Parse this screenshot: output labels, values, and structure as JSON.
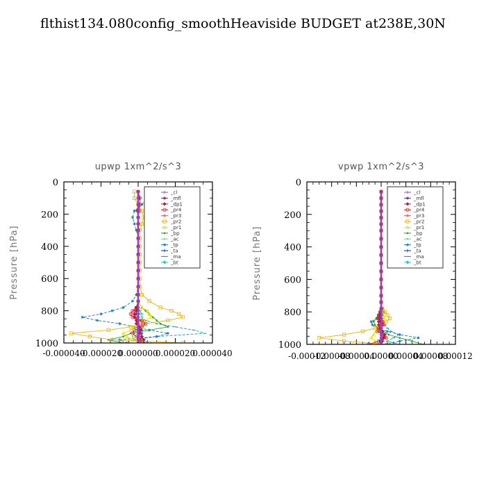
{
  "figure": {
    "title": "flthist134.080config_smoothHeaviside  BUDGET at238E,30N"
  },
  "legend_entries": [
    {
      "label": "_cl",
      "color": "#9a40c8",
      "marker": "plus"
    },
    {
      "label": "_mfl",
      "color": "#7a1f6e",
      "marker": "star"
    },
    {
      "label": "_dp1",
      "color": "#b01a4a",
      "marker": "diamond"
    },
    {
      "label": "_pr4",
      "color": "#e01818",
      "marker": "circle"
    },
    {
      "label": "_pr3",
      "color": "#ff5a5a",
      "marker": "star"
    },
    {
      "label": "_pr2",
      "color": "#f0b400",
      "marker": "square"
    },
    {
      "label": "_pr1",
      "color": "#e8e000",
      "marker": "triangle"
    },
    {
      "label": "_bp",
      "color": "#20a020",
      "marker": "dot"
    },
    {
      "label": "_ac",
      "color": "#70e070",
      "marker": "dot"
    },
    {
      "label": "_tp",
      "color": "#1878b8",
      "marker": "star"
    },
    {
      "label": "_ta",
      "color": "#0a2a90",
      "marker": "plus"
    },
    {
      "label": "_ma",
      "color": "#1890c0",
      "marker": "dash"
    },
    {
      "label": "_bt",
      "color": "#00d8d8",
      "marker": "diamond"
    }
  ],
  "chart_data": [
    {
      "type": "line",
      "title": "upwp   1xm^2/s^3",
      "xlabel": "",
      "ylabel": "Pressure [hPa]",
      "xlim": [
        -4e-05,
        4e-05
      ],
      "ylim": [
        1000,
        0
      ],
      "xticks": [
        -4e-05,
        -2e-05,
        0,
        2e-05,
        4e-05
      ],
      "xtick_labels": [
        "-0.000040",
        "-0.000020",
        "0.000000",
        "0.000020",
        "0.000040"
      ],
      "yticks": [
        0,
        200,
        400,
        600,
        800,
        1000
      ],
      "ytick_labels": [
        "0",
        "200",
        "400",
        "600",
        "800",
        "1000"
      ],
      "legend_location": "upper-right",
      "y": [
        60,
        100,
        140,
        180,
        220,
        260,
        300,
        350,
        400,
        450,
        500,
        550,
        600,
        650,
        700,
        740,
        780,
        800,
        820,
        840,
        860,
        880,
        900,
        920,
        940,
        960,
        980,
        1000
      ],
      "series": [
        {
          "name": "_cl",
          "values": [
            0,
            0,
            0,
            0,
            0,
            0,
            0,
            0,
            0,
            0,
            0,
            0,
            0,
            0,
            0,
            0,
            0,
            0,
            0,
            0,
            0,
            0,
            0,
            0,
            0,
            0,
            0,
            0
          ]
        },
        {
          "name": "_mfl",
          "values": [
            0,
            0,
            0,
            0,
            0,
            0,
            0,
            0,
            0,
            0,
            0,
            0,
            0,
            0,
            0,
            0,
            0,
            0,
            0,
            0,
            0,
            0,
            0,
            0,
            0,
            0,
            0,
            0
          ]
        },
        {
          "name": "_dp1",
          "values": [
            0,
            5e-07,
            0,
            -5e-07,
            0,
            0,
            0,
            0,
            0,
            0,
            0,
            0,
            0,
            0,
            0,
            0,
            -1e-06,
            -1e-06,
            -2e-06,
            -2e-06,
            -1e-06,
            -1e-06,
            5e-07,
            1e-06,
            1e-06,
            2e-06,
            3e-06,
            3e-06
          ]
        },
        {
          "name": "_pr4",
          "values": [
            0,
            1e-06,
            1e-06,
            5e-07,
            0,
            0,
            0,
            0,
            0,
            0,
            0,
            0,
            0,
            0,
            0,
            0,
            -1e-06,
            -3e-06,
            -4e-06,
            -3e-06,
            2e-06,
            4e-06,
            2e-06,
            -2e-06,
            -3e-06,
            -1e-06,
            2e-06,
            1e-06
          ]
        },
        {
          "name": "_pr3",
          "values": [
            0,
            0,
            0,
            0,
            0,
            0,
            0,
            0,
            0,
            0,
            0,
            0,
            0,
            0,
            0,
            0,
            -1e-06,
            -2e-06,
            -2e-06,
            -1e-06,
            1e-06,
            2e-06,
            1e-06,
            0,
            0,
            1e-06,
            1e-06,
            0
          ]
        },
        {
          "name": "_pr2",
          "values": [
            -2e-06,
            -2e-06,
            0,
            2e-06,
            3e-06,
            2e-06,
            1e-06,
            1e-06,
            1e-06,
            1e-06,
            1e-06,
            1e-06,
            1e-06,
            1e-06,
            2e-06,
            6e-06,
            1.2e-05,
            1.8e-05,
            2.2e-05,
            2.4e-05,
            1.6e-05,
            4e-06,
            -4e-06,
            -1.6e-05,
            -3.6e-05,
            -2.6e-05,
            -1.4e-05,
            2.4e-05
          ]
        },
        {
          "name": "_pr1",
          "values": [
            0,
            0,
            0,
            0,
            0,
            0,
            0,
            0,
            0,
            0,
            0,
            0,
            0,
            0,
            0,
            0,
            2e-06,
            5e-06,
            6e-06,
            7e-06,
            3e-06,
            0,
            -2e-06,
            -4e-06,
            -8e-06,
            -6e-06,
            -3e-06,
            4e-06
          ]
        },
        {
          "name": "_bp",
          "values": [
            0,
            0,
            0,
            0,
            0,
            0,
            0,
            0,
            0,
            0,
            0,
            0,
            0,
            0,
            0,
            0,
            2e-06,
            4e-06,
            6e-06,
            8e-06,
            1e-05,
            1.2e-05,
            1.6e-05,
            6e-06,
            -4e-06,
            -8e-06,
            -1.6e-05,
            -8e-06
          ]
        },
        {
          "name": "_ac",
          "values": [
            0,
            0,
            0,
            0,
            0,
            0,
            0,
            0,
            0,
            0,
            0,
            0,
            0,
            0,
            0,
            0,
            0,
            1e-06,
            1e-06,
            2e-06,
            2e-06,
            3e-06,
            2e-06,
            0,
            -2e-06,
            -3e-06,
            -2e-06,
            0
          ]
        },
        {
          "name": "_tp",
          "values": [
            4e-06,
            5e-06,
            2e-06,
            -2e-06,
            -3e-06,
            -2e-06,
            -1e-06,
            0,
            0,
            0,
            0,
            0,
            0,
            0,
            -1e-06,
            -3e-06,
            -8e-06,
            -1.4e-05,
            -2e-05,
            -3e-05,
            -2.2e-05,
            -1e-05,
            -2e-06,
            6e-06,
            1.6e-05,
            1e-05,
            -1e-05,
            -6e-06
          ]
        },
        {
          "name": "_ta",
          "values": [
            0,
            0,
            0,
            0,
            0,
            0,
            0,
            0,
            0,
            0,
            0,
            0,
            0,
            0,
            0,
            0,
            0,
            -1e-06,
            -1e-06,
            -2e-06,
            -1e-06,
            0,
            1e-06,
            2e-06,
            2e-06,
            2e-06,
            1e-06,
            0
          ]
        },
        {
          "name": "_ma",
          "values": [
            0,
            0,
            0,
            0,
            0,
            0,
            0,
            0,
            0,
            0,
            0,
            0,
            0,
            0,
            0,
            0,
            0,
            1e-06,
            2e-06,
            2e-06,
            4e-06,
            1e-05,
            2e-05,
            3e-05,
            3.6e-05,
            1e-05,
            -2e-06,
            8e-06
          ]
        },
        {
          "name": "_bt",
          "values": [
            0,
            0,
            0,
            0,
            0,
            0,
            0,
            0,
            0,
            0,
            0,
            0,
            0,
            0,
            0,
            0,
            0,
            0,
            0,
            0,
            0,
            0,
            0,
            0,
            0,
            0,
            0,
            0
          ]
        }
      ]
    },
    {
      "type": "line",
      "title": "vpwp   1xm^2/s^3",
      "xlabel": "",
      "ylabel": "Pressure [hPa]",
      "xlim": [
        -0.00012,
        0.00012
      ],
      "ylim": [
        1000,
        0
      ],
      "xticks": [
        -0.00012,
        -8e-05,
        -4e-05,
        0,
        4e-05,
        8e-05,
        0.00012
      ],
      "xtick_labels": [
        "-0.00012",
        "-0.00008",
        "-0.00004",
        "0.00000",
        "0.00004",
        "0.00008",
        "0.00012"
      ],
      "yticks": [
        0,
        200,
        400,
        600,
        800,
        1000
      ],
      "ytick_labels": [
        "0",
        "200",
        "400",
        "600",
        "800",
        "1000"
      ],
      "legend_location": "upper-right",
      "y": [
        60,
        100,
        140,
        180,
        220,
        260,
        300,
        350,
        400,
        450,
        500,
        550,
        600,
        650,
        700,
        740,
        780,
        800,
        820,
        840,
        860,
        880,
        900,
        920,
        940,
        960,
        980,
        1000
      ],
      "series": [
        {
          "name": "_cl",
          "values": [
            0,
            0,
            0,
            0,
            0,
            0,
            0,
            0,
            0,
            0,
            0,
            0,
            0,
            0,
            0,
            0,
            0,
            0,
            0,
            0,
            0,
            0,
            0,
            0,
            0,
            0,
            0,
            0
          ]
        },
        {
          "name": "_mfl",
          "values": [
            0,
            0,
            0,
            0,
            0,
            0,
            0,
            0,
            0,
            0,
            0,
            0,
            0,
            0,
            0,
            0,
            0,
            0,
            0,
            0,
            0,
            0,
            0,
            0,
            0,
            0,
            0,
            0
          ]
        },
        {
          "name": "_dp1",
          "values": [
            0,
            0,
            0,
            0,
            0,
            0,
            0,
            0,
            0,
            0,
            0,
            0,
            0,
            0,
            0,
            0,
            0,
            -1e-06,
            -2e-06,
            -3e-06,
            -4e-06,
            -4e-06,
            -2e-06,
            2e-06,
            6e-06,
            4e-06,
            -2e-06,
            0
          ]
        },
        {
          "name": "_pr4",
          "values": [
            0,
            0,
            0,
            0,
            0,
            0,
            0,
            0,
            0,
            0,
            0,
            0,
            0,
            0,
            0,
            0,
            0,
            -2e-06,
            -4e-06,
            -6e-06,
            2e-06,
            4e-06,
            -4e-06,
            -6e-06,
            3e-06,
            8e-06,
            -4e-06,
            -2e-05
          ]
        },
        {
          "name": "_pr3",
          "values": [
            0,
            0,
            0,
            0,
            0,
            0,
            0,
            0,
            0,
            0,
            0,
            0,
            0,
            0,
            0,
            0,
            0,
            -1e-06,
            -2e-06,
            -3e-06,
            1e-06,
            3e-06,
            0,
            -3e-06,
            0,
            4e-06,
            0,
            -6e-06
          ]
        },
        {
          "name": "_pr2",
          "values": [
            0,
            0,
            0,
            0,
            0,
            0,
            0,
            0,
            0,
            0,
            0,
            0,
            0,
            0,
            0,
            0,
            2e-06,
            6e-06,
            1e-05,
            1.4e-05,
            8e-06,
            2e-06,
            -1e-05,
            -3e-05,
            -6e-05,
            -0.0001,
            -6e-05,
            1e-05
          ]
        },
        {
          "name": "_pr1",
          "values": [
            0,
            0,
            0,
            0,
            0,
            0,
            0,
            0,
            0,
            0,
            0,
            0,
            0,
            0,
            0,
            0,
            1e-06,
            2e-06,
            4e-06,
            5e-06,
            3e-06,
            0,
            -4e-06,
            -8e-06,
            -1.2e-05,
            -1.6e-05,
            -1e-05,
            0
          ]
        },
        {
          "name": "_bp",
          "values": [
            0,
            0,
            0,
            0,
            0,
            0,
            0,
            0,
            0,
            0,
            0,
            0,
            0,
            0,
            0,
            0,
            0,
            -2e-06,
            -5e-06,
            -8e-06,
            -1.2e-05,
            -1e-05,
            -4e-06,
            4e-06,
            1.2e-05,
            3e-05,
            5e-05,
            6.8e-05
          ]
        },
        {
          "name": "_ac",
          "values": [
            0,
            0,
            0,
            0,
            0,
            0,
            0,
            0,
            0,
            0,
            0,
            0,
            0,
            0,
            0,
            0,
            0,
            -1e-06,
            -2e-06,
            -3e-06,
            -4e-06,
            -2e-06,
            0,
            2e-06,
            4e-06,
            8e-06,
            1.2e-05,
            1.6e-05
          ]
        },
        {
          "name": "_tp",
          "values": [
            0,
            0,
            0,
            0,
            0,
            0,
            0,
            0,
            0,
            0,
            0,
            0,
            0,
            0,
            0,
            0,
            2e-06,
            4e-06,
            2e-06,
            -6e-06,
            -1.6e-05,
            -1.4e-05,
            -6e-06,
            1e-05,
            3e-05,
            6e-05,
            3e-05,
            8e-06
          ]
        },
        {
          "name": "_ta",
          "values": [
            0,
            0,
            0,
            0,
            0,
            0,
            0,
            0,
            0,
            0,
            0,
            0,
            0,
            0,
            0,
            0,
            0,
            0,
            -1e-06,
            -2e-06,
            -2e-06,
            -1e-06,
            1e-06,
            2e-06,
            3e-06,
            4e-06,
            3e-06,
            0
          ]
        },
        {
          "name": "_ma",
          "values": [
            0,
            0,
            0,
            0,
            0,
            0,
            0,
            0,
            0,
            0,
            0,
            0,
            0,
            0,
            0,
            0,
            0,
            0,
            1e-06,
            2e-06,
            4e-06,
            6e-06,
            1e-05,
            1.6e-05,
            2.8e-05,
            2e-05,
            1e-05,
            3e-05
          ]
        },
        {
          "name": "_bt",
          "values": [
            0,
            0,
            0,
            0,
            0,
            0,
            0,
            0,
            0,
            0,
            0,
            0,
            0,
            0,
            0,
            0,
            0,
            0,
            0,
            0,
            0,
            0,
            0,
            0,
            0,
            0,
            0,
            0
          ]
        }
      ]
    }
  ]
}
